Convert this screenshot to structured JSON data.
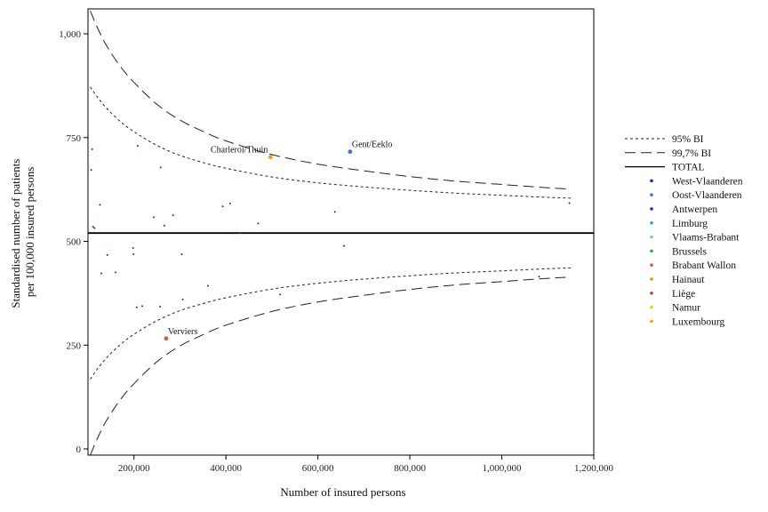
{
  "chart_data": {
    "type": "scatter",
    "xlabel": "Number of insured persons",
    "ylabel_lines": [
      "Standardised number of patients",
      "per 100,000 insured persons"
    ],
    "xlim": [
      100000,
      1200000
    ],
    "ylim": [
      -15,
      1060
    ],
    "xticks": [
      {
        "value": 200000,
        "label": "200,000"
      },
      {
        "value": 400000,
        "label": "400,000"
      },
      {
        "value": 600000,
        "label": "600,000"
      },
      {
        "value": 800000,
        "label": "800,000"
      },
      {
        "value": 1000000,
        "label": "1,000,000"
      },
      {
        "value": 1200000,
        "label": "1,200,000"
      }
    ],
    "yticks": [
      {
        "value": 0,
        "label": "0"
      },
      {
        "value": 250,
        "label": "250"
      },
      {
        "value": 500,
        "label": "500"
      },
      {
        "value": 750,
        "label": "750"
      },
      {
        "value": 1000,
        "label": "1,000"
      }
    ],
    "grid": false,
    "legend_position": "right",
    "total_value": 520,
    "bands": {
      "x": [
        105000,
        120000,
        140000,
        170000,
        200000,
        250000,
        300000,
        350000,
        400000,
        500000,
        600000,
        700000,
        800000,
        900000,
        1000000,
        1100000,
        1150000
      ],
      "ci95_upper": [
        872,
        848,
        821,
        789,
        764,
        731,
        707,
        690,
        676,
        655,
        641,
        631,
        623,
        616,
        611,
        606,
        604
      ],
      "ci95_lower": [
        168,
        192,
        219,
        251,
        276,
        309,
        333,
        350,
        364,
        385,
        399,
        409,
        417,
        424,
        429,
        434,
        436
      ],
      "ci997_upper": [
        1055,
        1016,
        972,
        922,
        883,
        830,
        792,
        765,
        742,
        709,
        686,
        670,
        656,
        645,
        637,
        629,
        626
      ],
      "ci997_lower": [
        -15,
        24,
        68,
        118,
        157,
        210,
        248,
        275,
        298,
        331,
        354,
        370,
        384,
        395,
        403,
        411,
        414
      ]
    },
    "series": [
      {
        "name": "95% BI",
        "kind": "ci95",
        "color": "#333333"
      },
      {
        "name": "99,7% BI",
        "kind": "ci997",
        "color": "#111111"
      },
      {
        "name": "TOTAL",
        "kind": "total",
        "color": "#000000"
      },
      {
        "name": "West-Vlaanderen",
        "color": "#1f2f8f"
      },
      {
        "name": "Oost-Vlaanderen",
        "color": "#4a6fd6"
      },
      {
        "name": "Antwerpen",
        "color": "#1c22e6"
      },
      {
        "name": "Limburg",
        "color": "#3a9ad9"
      },
      {
        "name": "Vlaams-Brabant",
        "color": "#7ec8ea"
      },
      {
        "name": "Brussels",
        "color": "#2eaa4a"
      },
      {
        "name": "Brabant Wallon",
        "color": "#c8643c"
      },
      {
        "name": "Hainaut",
        "color": "#f08c1e"
      },
      {
        "name": "Liège",
        "color": "#b24a2a"
      },
      {
        "name": "Namur",
        "color": "#f2c81e"
      },
      {
        "name": "Luxembourg",
        "color": "#f0a01e"
      }
    ],
    "highlighted_points": [
      {
        "x": 497000,
        "y": 703,
        "label": "Charleroi/Thuin",
        "color": "#f0a01e",
        "label_side": "left"
      },
      {
        "x": 670000,
        "y": 716,
        "label": "Gent/Eeklo",
        "color": "#4a6fd6",
        "label_side": "right"
      },
      {
        "x": 270000,
        "y": 266,
        "label": "Verviers",
        "color": "#c8643c",
        "label_side": "right"
      }
    ],
    "points": [
      {
        "x": 107000,
        "y": 672
      },
      {
        "x": 109000,
        "y": 722
      },
      {
        "x": 111000,
        "y": 535
      },
      {
        "x": 114000,
        "y": 532
      },
      {
        "x": 126000,
        "y": 588
      },
      {
        "x": 129000,
        "y": 423
      },
      {
        "x": 142000,
        "y": 467
      },
      {
        "x": 160000,
        "y": 425
      },
      {
        "x": 198000,
        "y": 484
      },
      {
        "x": 199000,
        "y": 469
      },
      {
        "x": 206000,
        "y": 341
      },
      {
        "x": 208000,
        "y": 730
      },
      {
        "x": 218000,
        "y": 344
      },
      {
        "x": 243000,
        "y": 558
      },
      {
        "x": 257000,
        "y": 343
      },
      {
        "x": 258000,
        "y": 678
      },
      {
        "x": 266000,
        "y": 538
      },
      {
        "x": 285000,
        "y": 563
      },
      {
        "x": 304000,
        "y": 469
      },
      {
        "x": 306000,
        "y": 360
      },
      {
        "x": 361000,
        "y": 393
      },
      {
        "x": 393000,
        "y": 584
      },
      {
        "x": 409000,
        "y": 591
      },
      {
        "x": 431000,
        "y": 520
      },
      {
        "x": 470000,
        "y": 543
      },
      {
        "x": 518000,
        "y": 372
      },
      {
        "x": 637000,
        "y": 571
      },
      {
        "x": 657000,
        "y": 489
      },
      {
        "x": 1081000,
        "y": 415
      },
      {
        "x": 1147000,
        "y": 592
      }
    ]
  }
}
